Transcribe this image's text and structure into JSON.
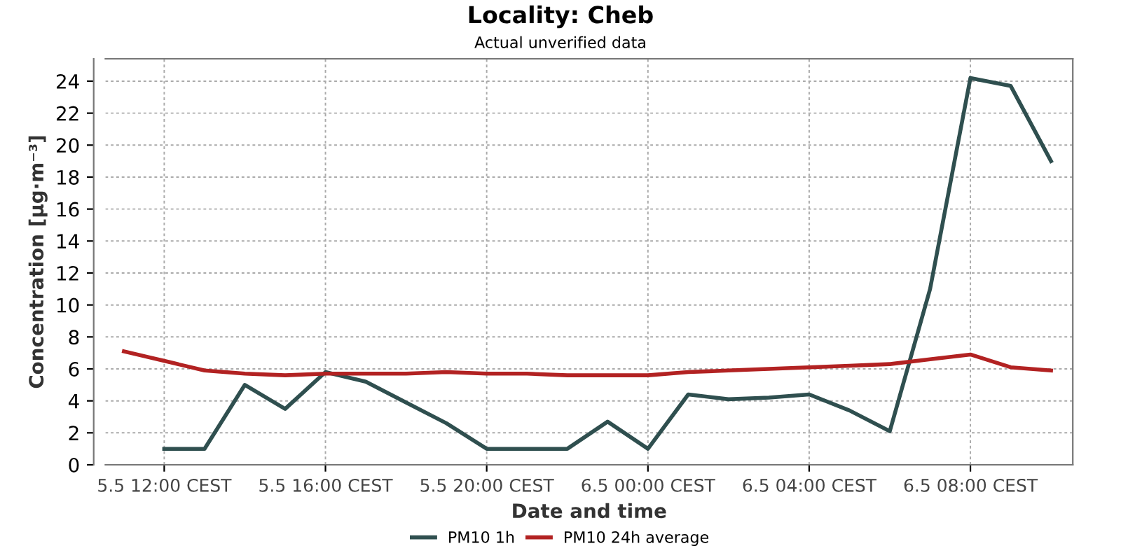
{
  "chart_data": {
    "type": "line",
    "title": "Locality: Cheb",
    "subtitle": "Actual unverified data",
    "xlabel": "Date and time",
    "ylabel": "Concentration [µg·m⁻³]",
    "categories": [
      null,
      "5.5 12:00 CEST",
      null,
      null,
      null,
      "5.5 16:00 CEST",
      null,
      null,
      null,
      "5.5 20:00 CEST",
      null,
      null,
      null,
      "6.5 00:00 CEST",
      null,
      null,
      null,
      "6.5 04:00 CEST",
      null,
      null,
      null,
      "6.5 08:00 CEST",
      null,
      null
    ],
    "ylim": [
      0,
      25.4
    ],
    "yticks": [
      0,
      2,
      4,
      6,
      8,
      10,
      12,
      14,
      16,
      18,
      20,
      22,
      24
    ],
    "grid": true,
    "legend": "bottom",
    "line_style": "solid",
    "series": [
      {
        "name": "PM10 1h",
        "color": "#2f4f4f",
        "values": [
          null,
          1,
          1,
          5,
          3.5,
          5.8,
          5.2,
          3.9,
          2.6,
          1,
          1,
          1,
          2.7,
          1,
          4.4,
          4.1,
          4.2,
          4.4,
          3.4,
          2.1,
          11,
          24.2,
          23.7,
          19
        ]
      },
      {
        "name": "PM10 24h average",
        "color": "#b22222",
        "values": [
          7.1,
          6.5,
          5.9,
          5.7,
          5.6,
          5.7,
          5.7,
          5.7,
          5.8,
          5.7,
          5.7,
          5.6,
          5.6,
          5.6,
          5.8,
          5.9,
          6.0,
          6.1,
          6.2,
          6.3,
          6.6,
          6.9,
          6.1,
          5.9
        ]
      }
    ]
  }
}
